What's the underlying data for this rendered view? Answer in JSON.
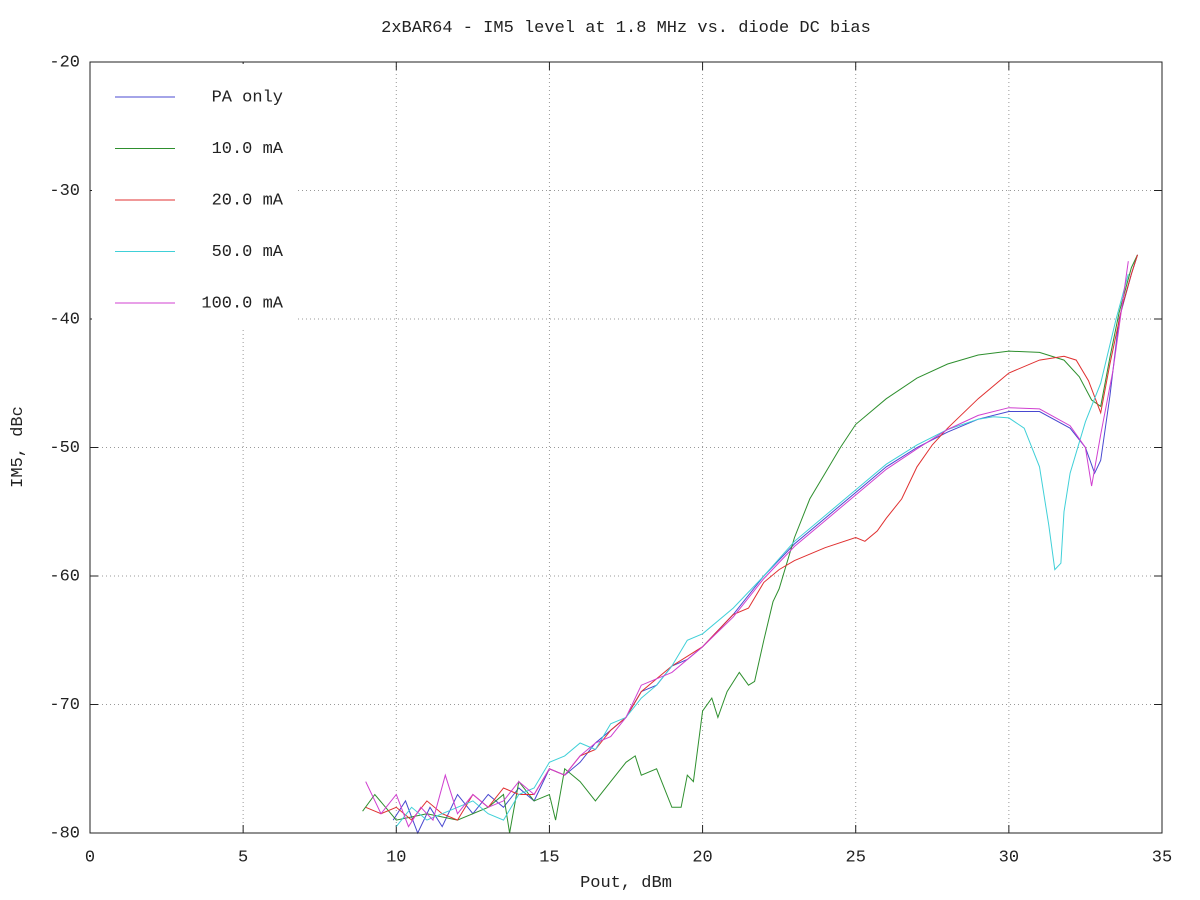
{
  "chart_data": {
    "type": "line",
    "title": "2xBAR64 - IM5 level at 1.8 MHz vs. diode DC bias",
    "x_label": "Pout, dBm",
    "y_label": "IM5, dBc",
    "xlim": [
      0,
      35
    ],
    "ylim": [
      -80,
      -20
    ],
    "xticks": [
      0,
      5,
      10,
      15,
      20,
      25,
      30,
      35
    ],
    "yticks": [
      -80,
      -70,
      -60,
      -50,
      -40,
      -30,
      -20
    ],
    "grid": true,
    "legend": "top-left",
    "series": [
      {
        "name": "PA only",
        "color": "#4848d0",
        "x": [
          9.9,
          10.3,
          10.7,
          11.1,
          11.5,
          12.0,
          12.5,
          13.0,
          13.5,
          14.0,
          14.5,
          15.0,
          15.5,
          16.0,
          16.5,
          17.0,
          17.5,
          18.0,
          18.5,
          19.0,
          19.5,
          20.0,
          21.0,
          22.0,
          23.0,
          24.0,
          25.0,
          26.0,
          27.0,
          28.0,
          29.0,
          30.0,
          31.0,
          32.0,
          32.5,
          32.8,
          33.0,
          33.3,
          33.6,
          34.0,
          34.2
        ],
        "values": [
          -79,
          -77.5,
          -80,
          -78,
          -79.5,
          -77,
          -78.5,
          -77,
          -78,
          -76.5,
          -77.5,
          -75,
          -75.5,
          -74.5,
          -73,
          -72,
          -71,
          -69,
          -68.5,
          -67,
          -66.5,
          -65.5,
          -63,
          -60,
          -57.5,
          -55.5,
          -53.5,
          -51.5,
          -50,
          -48.8,
          -47.8,
          -47.2,
          -47.2,
          -48.5,
          -50,
          -52,
          -51,
          -46,
          -40,
          -36.5,
          -35
        ]
      },
      {
        "name": "10.0 mA",
        "color": "#2e8f2e",
        "x": [
          8.9,
          9.3,
          10.0,
          11.0,
          12.0,
          13.0,
          13.5,
          13.7,
          14.0,
          14.5,
          15.0,
          15.2,
          15.5,
          16.0,
          16.5,
          17.0,
          17.5,
          17.8,
          18.0,
          18.5,
          19.0,
          19.3,
          19.5,
          19.7,
          20.0,
          20.3,
          20.5,
          20.8,
          21.2,
          21.5,
          21.7,
          22.0,
          22.3,
          22.5,
          23.0,
          23.5,
          24.0,
          24.5,
          25.0,
          26.0,
          27.0,
          28.0,
          29.0,
          30.0,
          31.0,
          31.8,
          32.3,
          32.7,
          33.0,
          33.3,
          33.6,
          34.0,
          34.2
        ],
        "values": [
          -78.3,
          -77,
          -79,
          -78.5,
          -79,
          -78,
          -77,
          -80,
          -76,
          -77.5,
          -77,
          -79,
          -75,
          -76,
          -77.5,
          -76,
          -74.5,
          -74,
          -75.5,
          -75,
          -78,
          -78,
          -75.5,
          -76,
          -70.5,
          -69.5,
          -71,
          -69,
          -67.5,
          -68.5,
          -68.2,
          -65,
          -62,
          -61,
          -57,
          -54,
          -52,
          -50,
          -48.2,
          -46.2,
          -44.6,
          -43.5,
          -42.8,
          -42.5,
          -42.6,
          -43.2,
          -44.5,
          -46.3,
          -46.8,
          -43,
          -39.5,
          -36,
          -35
        ]
      },
      {
        "name": "20.0 mA",
        "color": "#e03030",
        "x": [
          9.0,
          9.5,
          10.0,
          10.5,
          11.0,
          11.5,
          12.0,
          12.5,
          13.0,
          13.5,
          14.0,
          14.5,
          15.0,
          15.5,
          16.0,
          16.5,
          17.0,
          17.5,
          18.0,
          18.5,
          19.0,
          20.0,
          21.0,
          21.5,
          22.0,
          22.5,
          23.0,
          24.0,
          25.0,
          25.3,
          25.7,
          26.0,
          26.5,
          27.0,
          27.5,
          28.0,
          29.0,
          30.0,
          31.0,
          31.8,
          32.2,
          32.6,
          33.0,
          33.3,
          33.7,
          34.0,
          34.2
        ],
        "values": [
          -78,
          -78.5,
          -78,
          -79,
          -77.5,
          -78.5,
          -79,
          -77,
          -78,
          -76.5,
          -77,
          -77,
          -75,
          -75.5,
          -74,
          -73.5,
          -72,
          -71,
          -69,
          -68,
          -67,
          -65.5,
          -63,
          -62.5,
          -60.5,
          -59.5,
          -58.8,
          -57.8,
          -57,
          -57.3,
          -56.5,
          -55.5,
          -54,
          -51.5,
          -49.8,
          -48.5,
          -46.2,
          -44.2,
          -43.2,
          -42.9,
          -43.2,
          -44.8,
          -47.3,
          -43.5,
          -39,
          -36.5,
          -35
        ]
      },
      {
        "name": "50.0 mA",
        "color": "#40d0d8",
        "x": [
          10.0,
          10.5,
          11.0,
          11.5,
          12.0,
          12.5,
          13.0,
          13.5,
          14.0,
          14.5,
          15.0,
          15.5,
          16.0,
          16.5,
          17.0,
          17.5,
          18.0,
          18.5,
          19.0,
          19.5,
          20.0,
          21.0,
          22.0,
          23.0,
          24.0,
          25.0,
          26.0,
          27.0,
          28.0,
          29.0,
          29.5,
          30.0,
          30.5,
          31.0,
          31.3,
          31.5,
          31.7,
          31.8,
          32.0,
          32.5,
          33.0,
          33.5,
          33.9
        ],
        "values": [
          -79.5,
          -78,
          -79,
          -78.5,
          -78,
          -77.5,
          -78.5,
          -79,
          -77,
          -76.5,
          -74.5,
          -74,
          -73,
          -73.5,
          -71.5,
          -71,
          -69.5,
          -68.5,
          -67,
          -65,
          -64.5,
          -62.5,
          -60,
          -57.3,
          -55.3,
          -53.3,
          -51.3,
          -49.8,
          -48.6,
          -47.8,
          -47.6,
          -47.7,
          -48.5,
          -51.5,
          -56,
          -59.5,
          -59,
          -55,
          -52,
          -48,
          -45,
          -40,
          -36.5
        ]
      },
      {
        "name": "100.0 mA",
        "color": "#d040d0",
        "x": [
          9.0,
          9.5,
          10.0,
          10.4,
          10.8,
          11.2,
          11.6,
          12.0,
          12.5,
          13.0,
          13.5,
          14.0,
          14.5,
          15.0,
          15.5,
          16.0,
          16.5,
          17.0,
          17.5,
          18.0,
          18.5,
          19.0,
          20.0,
          21.0,
          22.0,
          23.0,
          24.0,
          25.0,
          26.0,
          27.0,
          28.0,
          29.0,
          30.0,
          31.0,
          32.0,
          32.5,
          32.7,
          33.0,
          33.4,
          33.9
        ],
        "values": [
          -76,
          -78.5,
          -77,
          -79.5,
          -78,
          -79,
          -75.5,
          -78.5,
          -77,
          -78,
          -77.5,
          -76,
          -77,
          -75,
          -75.5,
          -74,
          -73,
          -72.5,
          -71,
          -68.5,
          -68,
          -67.5,
          -65.5,
          -63.2,
          -60.2,
          -57.7,
          -55.7,
          -53.7,
          -51.7,
          -50.1,
          -48.6,
          -47.5,
          -46.9,
          -47,
          -48.3,
          -50,
          -53,
          -49,
          -44,
          -35.5
        ]
      }
    ]
  }
}
